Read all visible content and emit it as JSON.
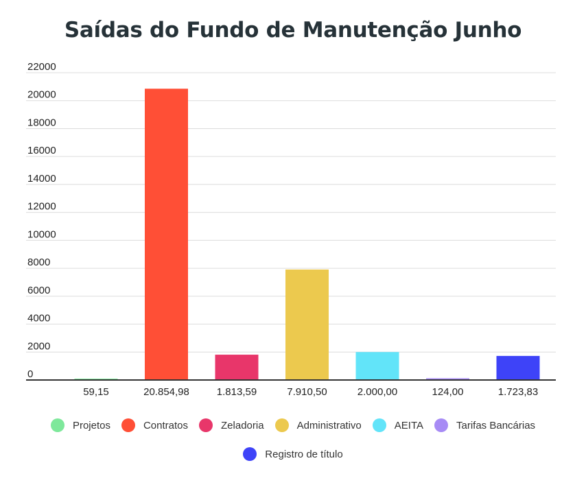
{
  "chart_data": {
    "type": "bar",
    "title": "Saídas do Fundo de Manutenção Junho",
    "xlabel": "",
    "ylabel": "",
    "ylim": [
      0,
      22000
    ],
    "y_ticks": [
      "0",
      "2000",
      "4000",
      "6000",
      "8000",
      "10000",
      "12000",
      "14000",
      "16000",
      "18000",
      "20000",
      "22000"
    ],
    "grid": true,
    "legend_position": "bottom",
    "categories": [
      "Projetos",
      "Contratos",
      "Zeladoria",
      "Administrativo",
      "AEITA",
      "Tarifas Bancárias",
      "Registro de título"
    ],
    "values": [
      59.15,
      20854.98,
      1813.59,
      7910.5,
      2000.0,
      124.0,
      1723.83
    ],
    "value_labels": [
      "59,15",
      "20.854,98",
      "1.813,59",
      "7.910,50",
      "2.000,00",
      "124,00",
      "1.723,83"
    ],
    "colors": [
      "#7ee89b",
      "#ff4f36",
      "#e8366a",
      "#ecc94e",
      "#62e4f9",
      "#a78bf5",
      "#3e43f8"
    ]
  }
}
